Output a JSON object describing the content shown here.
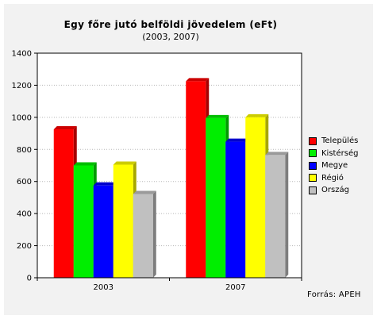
{
  "chart_data": {
    "type": "bar",
    "title": "Egy főre jutó belföldi jövedelem (eFt)",
    "subtitle": "(2003, 2007)",
    "categories": [
      "2003",
      "2007"
    ],
    "series": [
      {
        "name": "Település",
        "color": "#ff0000",
        "values": [
          925,
          1225
        ]
      },
      {
        "name": "Kistérség",
        "color": "#00ee00",
        "values": [
          700,
          995
        ]
      },
      {
        "name": "Megye",
        "color": "#0000ff",
        "values": [
          575,
          848
        ]
      },
      {
        "name": "Régió",
        "color": "#ffff00",
        "values": [
          705,
          1000
        ]
      },
      {
        "name": "Ország",
        "color": "#c0c0c0",
        "values": [
          522,
          765
        ]
      }
    ],
    "ylim": [
      0,
      1400
    ],
    "yticks": [
      "0",
      "200",
      "400",
      "600",
      "800",
      "1000",
      "1200",
      "1400"
    ],
    "grid": true,
    "legend": "right",
    "source": "Forrás: APEH"
  }
}
